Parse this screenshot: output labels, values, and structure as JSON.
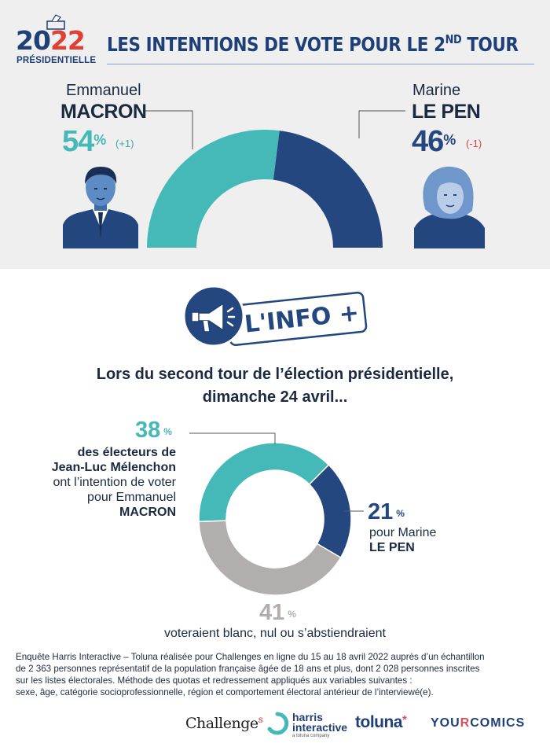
{
  "header": {
    "logo_year_a": "20",
    "logo_year_b": "22",
    "logo_sub": "PRÉSIDENTIELLE",
    "title": "LES INTENTIONS DE VOTE POUR LE 2",
    "title_sup": "ND",
    "title_end": " TOUR"
  },
  "candidates": {
    "left": {
      "first": "Emmanuel",
      "last": "MACRON",
      "pct": "54",
      "pct_sign": "%",
      "delta": "(+1)"
    },
    "right": {
      "first": "Marine",
      "last": "LE PEN",
      "pct": "46",
      "pct_sign": "%",
      "delta": "(-1)"
    }
  },
  "info_badge": {
    "label": "L'INFO +"
  },
  "subtitle": {
    "line1": "Lors du second tour de l’élection présidentielle,",
    "line2": "dimanche 24 avril..."
  },
  "second": {
    "a": {
      "pct": "38",
      "sign": "%",
      "l1": "des électeurs de",
      "l2": "Jean-Luc Mélenchon",
      "l3": "ont l’intention de voter",
      "l4": "pour Emmanuel",
      "l5": "MACRON"
    },
    "b": {
      "pct": "21",
      "sign": "%",
      "l1": "pour Marine",
      "l2": "LE PEN"
    },
    "c": {
      "pct": "41",
      "sign": "%",
      "l1": "voteraient blanc, nul ou s’abstiendraient"
    }
  },
  "footer": {
    "l1": "Enquête Harris Interactive – Toluna réalisée pour Challenges en ligne du 15 au 18 avril 2022 auprès d’un échantillon",
    "l2": "de 2 363 personnes représentatif de la population française âgée de 18 ans et plus, dont 2 028 personnes inscrites",
    "l3": "sur les listes électorales. Méthode des quotas et redressement appliqués aux variables suivantes :",
    "l4": "sexe, âge, catégorie socioprofessionnelle, région et comportement électoral antérieur de l’interviewé(e)."
  },
  "logos": {
    "challenges": "Challenge",
    "challenges_s": "s",
    "harris1": "harris",
    "harris2": "interactive",
    "harris_sub": "a toluna company",
    "toluna": "toluna",
    "toluna_star": "*",
    "yc_a": "YOU",
    "yc_b": "R",
    "yc_c": "COMICS"
  },
  "colors": {
    "macron": "#45b8b8",
    "lepen": "#24477f",
    "blanc": "#b2aeae",
    "delta_up": "#3fa7a7",
    "delta_down": "#d5473d"
  },
  "chart_data": [
    {
      "type": "pie",
      "categories": [
        "Emmanuel MACRON",
        "Marine LE PEN"
      ],
      "values": [
        54,
        46
      ],
      "unit": "%",
      "changes": [
        "+1",
        "-1"
      ]
    },
    {
      "type": "pie",
      "categories": [
        "pour Emmanuel MACRON",
        "pour Marine LE PEN",
        "voteraient blanc, nul ou s’abstiendraient"
      ],
      "values": [
        38,
        21,
        41
      ],
      "unit": "%"
    }
  ]
}
